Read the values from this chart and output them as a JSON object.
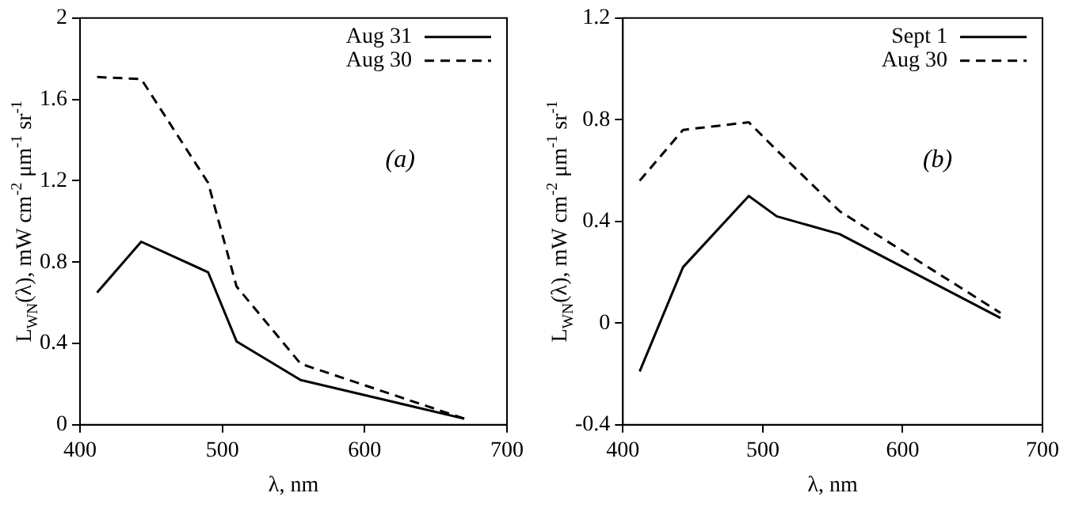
{
  "chart_data": [
    {
      "type": "line",
      "xlabel": "λ, nm",
      "ylabel": "L$_{WN}$(λ), mW cm$^{-2}$ μm$^{-1}$ sr$^{-1}$",
      "x": [
        412,
        443,
        490,
        510,
        555,
        670
      ],
      "series": [
        {
          "name": "Aug 31",
          "color": "#000000",
          "line_style": "solid",
          "values": [
            0.65,
            0.9,
            0.75,
            0.41,
            0.22,
            0.03
          ]
        },
        {
          "name": "Aug 30",
          "color": "#000000",
          "line_style": "dashed",
          "values": [
            1.71,
            1.7,
            1.19,
            0.68,
            0.3,
            0.03
          ]
        }
      ],
      "xlim": [
        400,
        700
      ],
      "xticks": [
        400,
        500,
        600,
        700
      ],
      "ylim": [
        0,
        2
      ],
      "yticks": [
        0,
        0.4,
        0.8,
        1.2,
        1.6,
        2
      ],
      "legend": "top right",
      "grid": false,
      "marker": "none",
      "annotations": [
        "(a)"
      ]
    },
    {
      "type": "line",
      "xlabel": "λ, nm",
      "ylabel": "L$_{WN}$(λ), mW cm$^{-2}$ μm$^{-1}$ sr$^{-1}$",
      "x": [
        412,
        443,
        490,
        510,
        555,
        670
      ],
      "series": [
        {
          "name": "Sept 1",
          "color": "#000000",
          "line_style": "solid",
          "values": [
            -0.19,
            0.22,
            0.5,
            0.42,
            0.35,
            0.02
          ]
        },
        {
          "name": "Aug 30",
          "color": "#000000",
          "line_style": "dashed",
          "values": [
            0.56,
            0.76,
            0.79,
            0.68,
            0.44,
            0.04
          ]
        }
      ],
      "xlim": [
        400,
        700
      ],
      "xticks": [
        400,
        500,
        600,
        700
      ],
      "ylim": [
        -0.4,
        1.2
      ],
      "yticks": [
        -0.4,
        0,
        0.4,
        0.8,
        1.2
      ],
      "legend": "top right",
      "grid": false,
      "marker": "none",
      "annotations": [
        "(b)"
      ]
    }
  ]
}
